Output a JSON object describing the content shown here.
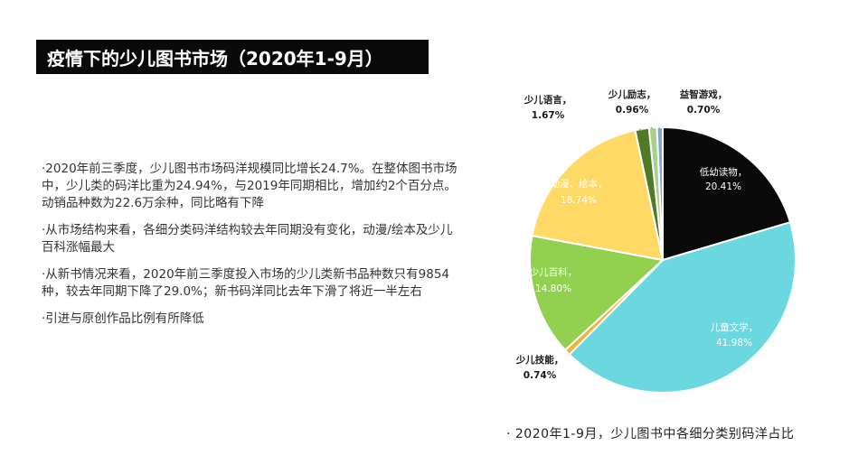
{
  "title": "疫情下的少儿图书市场（2020年1-9月）",
  "bullets": [
    "2020年前三季度，少儿图书市场码洋规模同比增长24.7%。在整体图书市场中，少儿类的码洋比重为24.94%，与2019年同期相比，增加约2个百分点。动销品种数为22.6万余种，同比略有下降",
    "从市场结构来看，各细分类码洋结构较去年同期没有变化，动漫/绘本及少儿百科涨幅最大",
    "从新书情况来看，2020年前三季度投入市场的少儿类新书品种数只有9854种，较去年同期下降了29.0%；新书码洋同比去年下滑了将近一半左右",
    "引进与原创作品比例有所降低"
  ],
  "caption": "· 2020年1-9月，少儿图书中各细分类别码洋占比",
  "chart_data": {
    "type": "pie",
    "title": "",
    "slices": [
      {
        "name": "低幼读物",
        "value": 20.41,
        "label": "20.41%",
        "color": "#0a0a0a"
      },
      {
        "name": "儿童文学",
        "value": 41.98,
        "label": "41.98%",
        "color": "#6bd8e0"
      },
      {
        "name": "少儿技能",
        "value": 0.74,
        "label": "0.74%",
        "color": "#f2b233"
      },
      {
        "name": "少儿百科",
        "value": 14.8,
        "label": "14.80%",
        "color": "#92d050"
      },
      {
        "name": "动漫、绘本",
        "value": 18.74,
        "label": "18.74%",
        "color": "#ffd966"
      },
      {
        "name": "少儿语言",
        "value": 1.67,
        "label": "1.67%",
        "color": "#4f7a28"
      },
      {
        "name": "少儿励志",
        "value": 0.96,
        "label": "0.96%",
        "color": "#a9d18e"
      },
      {
        "name": "益智游戏",
        "value": 0.7,
        "label": "0.70%",
        "color": "#7fa7d6"
      }
    ]
  }
}
